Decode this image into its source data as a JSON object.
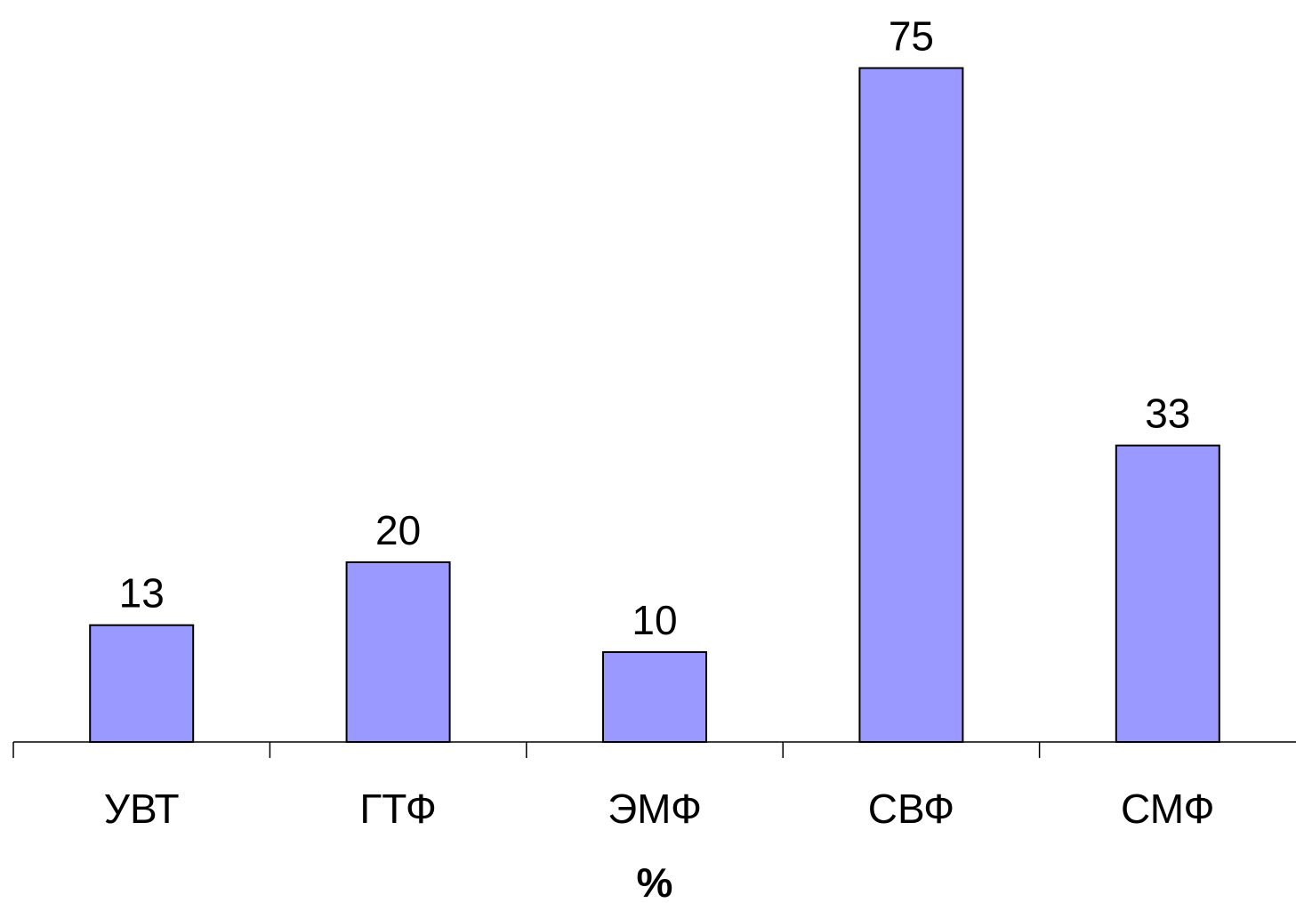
{
  "chart_data": {
    "type": "bar",
    "categories": [
      "УВТ",
      "ГТФ",
      "ЭМФ",
      "СВФ",
      "СМФ"
    ],
    "values": [
      13,
      20,
      10,
      75,
      33
    ],
    "data_labels": [
      "13",
      "20",
      "10",
      "75",
      "33"
    ],
    "xlabel": "%",
    "ylim": [
      0,
      80
    ],
    "grid": false,
    "legend": "none",
    "colors": {
      "bar_fill": "#9999ff",
      "bar_stroke": "#000000"
    }
  }
}
